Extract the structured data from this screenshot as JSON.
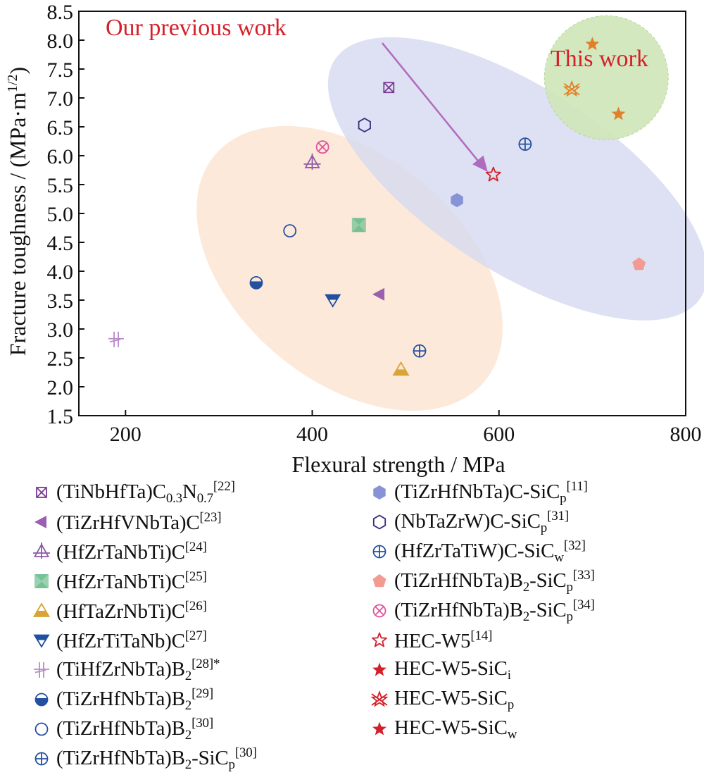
{
  "chart_data": {
    "type": "scatter",
    "xlabel": "Flexural strength / MPa",
    "ylabel": "Fracture toughness / (MPa·m",
    "ylabel_sup": "1/2",
    "ylabel_close": ")",
    "xlim": [
      150,
      800
    ],
    "ylim": [
      1.5,
      8.5
    ],
    "xticks": [
      "200",
      "400",
      "600",
      "800"
    ],
    "xtick_values": [
      200,
      400,
      600,
      800
    ],
    "yticks": [
      "1.5",
      "2.0",
      "2.5",
      "3.0",
      "3.5",
      "4.0",
      "4.5",
      "5.0",
      "5.5",
      "6.0",
      "6.5",
      "7.0",
      "7.5",
      "8.0",
      "8.5"
    ],
    "ytick_values": [
      1.5,
      2.0,
      2.5,
      3.0,
      3.5,
      4.0,
      4.5,
      5.0,
      5.5,
      6.0,
      6.5,
      7.0,
      7.5,
      8.0,
      8.5
    ],
    "grid": false,
    "annotations": {
      "previous": "Our previous work",
      "this": "This work"
    },
    "series": [
      {
        "name": "(TiNbHfTa)C0.3N0.7[22]",
        "marker": "square-x",
        "color": "#7b3c96",
        "x": 482,
        "y": 7.18
      },
      {
        "name": "(TiZrHfVNbTa)C[23]",
        "marker": "tri-left",
        "color": "#9a5fb0",
        "x": 472,
        "y": 3.6
      },
      {
        "name": "(HfZrTaNbTi)C[24]",
        "marker": "tri-cross",
        "color": "#8e5aa6",
        "x": 400,
        "y": 5.88
      },
      {
        "name": "(HfZrTaNbTi)C[25]",
        "marker": "bowtie",
        "color": "#6fbf8f",
        "x": 450,
        "y": 4.8
      },
      {
        "name": "(HfTaZrNbTi)C[26]",
        "marker": "tri-up-half",
        "color": "#d9a436",
        "x": 495,
        "y": 2.3
      },
      {
        "name": "(HfZrTiTaNb)C[27]",
        "marker": "tri-down",
        "color": "#2050a0",
        "x": 422,
        "y": 3.5
      },
      {
        "name": "(TiHfZrNbTa)B2[28]*",
        "marker": "double-cross",
        "color": "#b98ac9",
        "x": 190,
        "y": 2.82
      },
      {
        "name": "(TiZrHfNbTa)B2[29]",
        "marker": "circle-half",
        "color": "#2450a0",
        "x": 340,
        "y": 3.8
      },
      {
        "name": "(TiZrHfNbTa)B2[30]",
        "marker": "circle-open",
        "color": "#2450a0",
        "x": 376,
        "y": 4.7
      },
      {
        "name": "(TiZrHfNbTa)B2-SiCp[30]",
        "marker": "circle-plus",
        "color": "#2450a0",
        "x": 515,
        "y": 2.62
      },
      {
        "name": "(TiZrHfNbTa)C-SiCp[11]",
        "marker": "hexagon",
        "color": "#8793d6",
        "x": 555,
        "y": 5.23
      },
      {
        "name": "(NbTaZrW)C-SiCp[31]",
        "marker": "hexagon-open",
        "color": "#3a2a7e",
        "x": 456,
        "y": 6.53
      },
      {
        "name": "(HfZrTaTiW)C-SiCw[32]",
        "marker": "circle-plus",
        "color": "#2450a0",
        "x": 628,
        "y": 6.2
      },
      {
        "name": "(TiZrHfNbTa)B2-SiCp[33]",
        "marker": "pentagon",
        "color": "#f29b92",
        "x": 750,
        "y": 4.12
      },
      {
        "name": "(TiZrHfNbTa)B2-SiCp[34]",
        "marker": "circle-x",
        "color": "#e0559a",
        "x": 411,
        "y": 6.15
      },
      {
        "name": "HEC-W5[14]",
        "marker": "star-open",
        "color": "#d4202a",
        "x": 594,
        "y": 5.67
      },
      {
        "name": "HEC-W5-SiCi",
        "marker": "star",
        "color": "#d4202a",
        "x": 700,
        "y": 7.93
      },
      {
        "name": "HEC-W5-SiCp",
        "marker": "star-x",
        "color": "#d4202a",
        "x": 678,
        "y": 7.15
      },
      {
        "name": "HEC-W5-SiCw",
        "marker": "star",
        "color": "#d4202a",
        "x": 728,
        "y": 6.72
      }
    ],
    "this_work_colors": {
      "HEC-W5-SiCi": "#e0802a",
      "HEC-W5-SiCp": "#e0802a",
      "HEC-W5-SiCw": "#e0802a"
    },
    "region_colors": {
      "orange": "#fbe5d4",
      "blue": "#d5daf0",
      "green": "#cfe6b8"
    },
    "annotation_color": "#d4202a",
    "arrow_color": "#b16bbe"
  },
  "legend": {
    "left": [
      {
        "marker": "square-x",
        "color": "#7b3c96",
        "base": "(TiNbHfTa)C",
        "sub1": "0.3",
        "mid": "N",
        "sub2": "0.7",
        "sup": "[22]",
        "tail": ""
      },
      {
        "marker": "tri-left",
        "color": "#9a5fb0",
        "base": "(TiZrHfVNbTa)C",
        "sup": "[23]"
      },
      {
        "marker": "tri-cross",
        "color": "#8e5aa6",
        "base": "(HfZrTaNbTi)C",
        "sup": "[24]"
      },
      {
        "marker": "bowtie",
        "color": "#6fbf8f",
        "base": "(HfZrTaNbTi)C",
        "sup": "[25]"
      },
      {
        "marker": "tri-up-half",
        "color": "#d9a436",
        "base": "(HfTaZrNbTi)C",
        "sup": "[26]"
      },
      {
        "marker": "tri-down",
        "color": "#2050a0",
        "base": "(HfZrTiTaNb)C",
        "sup": "[27]"
      },
      {
        "marker": "double-cross",
        "color": "#b98ac9",
        "base": "(TiHfZrNbTa)B",
        "sub1": "2",
        "sup": "[28]*"
      },
      {
        "marker": "circle-half",
        "color": "#2450a0",
        "base": "(TiZrHfNbTa)B",
        "sub1": "2",
        "sup": "[29]"
      },
      {
        "marker": "circle-open",
        "color": "#2450a0",
        "base": "(TiZrHfNbTa)B",
        "sub1": "2",
        "sup": "[30]"
      },
      {
        "marker": "circle-plus",
        "color": "#2450a0",
        "base": "(TiZrHfNbTa)B",
        "sub1": "2",
        "mid": "-SiC",
        "sub2": "p",
        "sup": "[30]"
      }
    ],
    "right": [
      {
        "marker": "hexagon",
        "color": "#8793d6",
        "base": "(TiZrHfNbTa)C-SiC",
        "sub1": "p",
        "sup": "[11]"
      },
      {
        "marker": "hexagon-open",
        "color": "#3a2a7e",
        "base": "(NbTaZrW)C-SiC",
        "sub1": "p",
        "sup": "[31]"
      },
      {
        "marker": "circle-plus",
        "color": "#2450a0",
        "base": "(HfZrTaTiW)C-SiC",
        "sub1": "w",
        "sup": "[32]"
      },
      {
        "marker": "pentagon",
        "color": "#f29b92",
        "base": "(TiZrHfNbTa)B",
        "sub1": "2",
        "mid": "-SiC",
        "sub2": "p",
        "sup": "[33]"
      },
      {
        "marker": "circle-x",
        "color": "#e0559a",
        "base": "(TiZrHfNbTa)B",
        "sub1": "2",
        "mid": "-SiC",
        "sub2": "p",
        "sup": "[34]"
      },
      {
        "marker": "star-open",
        "color": "#d4202a",
        "base": "HEC-W5",
        "sup": "[14]"
      },
      {
        "marker": "star",
        "color": "#d4202a",
        "base": "HEC-W5-SiC",
        "sub1": "i"
      },
      {
        "marker": "star-x",
        "color": "#d4202a",
        "base": "HEC-W5-SiC",
        "sub1": "p"
      },
      {
        "marker": "star",
        "color": "#d4202a",
        "base": "HEC-W5-SiC",
        "sub1": "w"
      }
    ]
  }
}
